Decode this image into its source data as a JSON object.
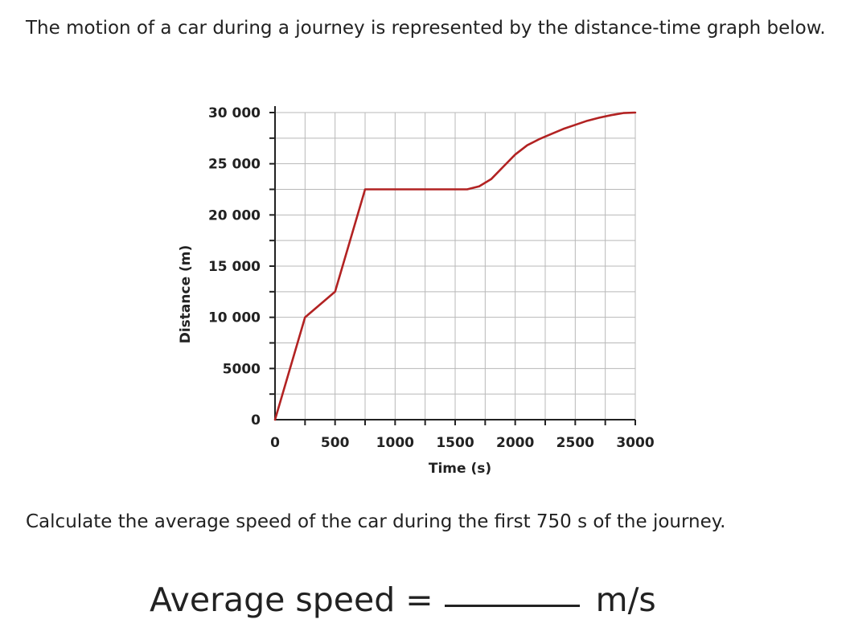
{
  "question": {
    "intro": "The motion of a car during a journey is represented by the distance-time graph below.",
    "prompt": "Calculate the average speed of the car during the first 750 s of the journey.",
    "answer_label": "Average speed =",
    "answer_unit": "m/s"
  },
  "chart_data": {
    "type": "line",
    "title": "",
    "xlabel": "Time (s)",
    "ylabel": "Distance (m)",
    "xlim": [
      0,
      3000
    ],
    "ylim": [
      0,
      30000
    ],
    "x_ticks": [
      0,
      500,
      1000,
      1500,
      2000,
      2500,
      3000
    ],
    "x_tick_labels": [
      "0",
      "500",
      "1000",
      "1500",
      "2000",
      "2500",
      "3000"
    ],
    "y_ticks": [
      0,
      5000,
      10000,
      15000,
      20000,
      25000,
      30000
    ],
    "y_tick_labels": [
      "0",
      "5000",
      "10 000",
      "15 000",
      "20 000",
      "25 000",
      "30 000"
    ],
    "grid": true,
    "grid_minor_step_x": 250,
    "grid_minor_step_y": 2500,
    "series_color": "#b22222",
    "series": [
      {
        "x": [
          0,
          250,
          500,
          750,
          1000,
          1250,
          1500,
          1600,
          1700,
          1800,
          1900,
          2000,
          2100,
          2200,
          2300,
          2400,
          2500,
          2600,
          2700,
          2800,
          2900,
          3000
        ],
        "y": [
          0,
          10000,
          12500,
          22500,
          22500,
          22500,
          22500,
          22500,
          22800,
          23500,
          24700,
          25900,
          26800,
          27400,
          27900,
          28400,
          28800,
          29200,
          29500,
          29750,
          29950,
          30000
        ]
      }
    ]
  }
}
